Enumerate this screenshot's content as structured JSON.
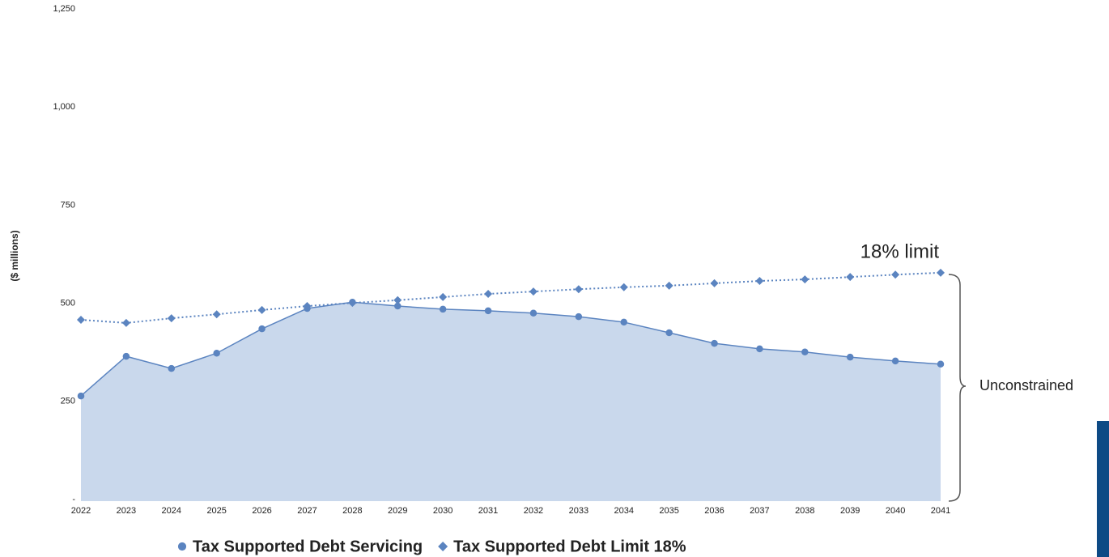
{
  "chart_data": {
    "type": "line",
    "y_axis_label": "($ millions)",
    "categories": [
      "2022",
      "2023",
      "2024",
      "2025",
      "2026",
      "2027",
      "2028",
      "2029",
      "2030",
      "2031",
      "2032",
      "2033",
      "2034",
      "2035",
      "2036",
      "2037",
      "2038",
      "2039",
      "2040",
      "2041"
    ],
    "series": [
      {
        "name": "Tax Supported Debt Servicing",
        "color": "#5b84c0",
        "fill": "#c9d8ec",
        "marker": "circle",
        "style": "solid",
        "values": [
          268,
          369,
          338,
          377,
          439,
          491,
          507,
          497,
          489,
          485,
          479,
          470,
          456,
          429,
          402,
          388,
          380,
          367,
          357,
          349
        ]
      },
      {
        "name": "Tax Supported Debt Limit 18%",
        "color": "#5b84c0",
        "marker": "diamond",
        "style": "dotted",
        "values": [
          462,
          454,
          466,
          476,
          487,
          497,
          505,
          512,
          520,
          528,
          534,
          540,
          545,
          549,
          555,
          561,
          565,
          571,
          577,
          582
        ]
      }
    ],
    "ylim": [
      0,
      1250
    ],
    "yticks": [
      {
        "value": 0,
        "label": "-"
      },
      250,
      500,
      750,
      {
        "value": 1000,
        "label": "1,000"
      },
      {
        "value": 1250,
        "label": "1,250"
      }
    ],
    "annotations": [
      "18% limit",
      "Unconstrained"
    ]
  }
}
